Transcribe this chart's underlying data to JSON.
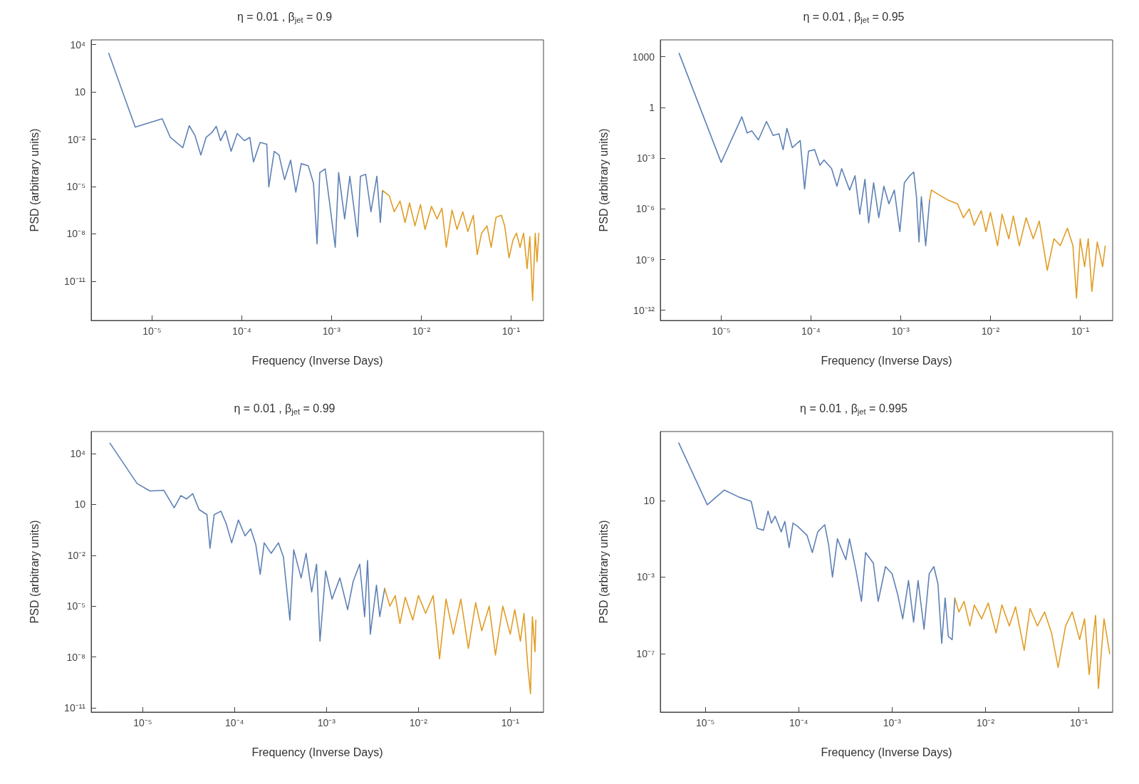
{
  "chart_data": [
    {
      "type": "line",
      "title": "η = 0.01 , β$_{jet}$ = 0.9",
      "xlabel": "Frequency (Inverse Days)",
      "ylabel": "PSD (arbitrary units)",
      "log": "xy",
      "marker": "none",
      "xlim": [
        2.1e-06,
        0.23
      ],
      "ylim": [
        3.2e-14,
        20000.0
      ],
      "xticks": [
        {
          "value": 1e-05,
          "label": "10⁻⁵"
        },
        {
          "value": 0.0001,
          "label": "10⁻⁴"
        },
        {
          "value": 0.001,
          "label": "10⁻³"
        },
        {
          "value": 0.01,
          "label": "10⁻²"
        },
        {
          "value": 0.1,
          "label": "10⁻¹"
        }
      ],
      "yticks": [
        {
          "value": 10000.0,
          "label": "10⁴"
        },
        10,
        {
          "value": 0.01,
          "label": "10⁻²"
        },
        {
          "value": 1e-05,
          "label": "10⁻⁵"
        },
        {
          "value": 1e-08,
          "label": "10⁻⁸"
        },
        {
          "value": 1e-11,
          "label": "10⁻¹¹"
        }
      ],
      "series": [
        {
          "color": "#5e81b5",
          "x": [
            3.3e-06,
            6.5e-06,
            1.3e-05,
            1.6e-05,
            2.2e-05,
            2.6e-05,
            3e-05,
            3.5e-05,
            4e-05,
            4.6e-05,
            5.2e-05,
            5.8e-05,
            6.6e-05,
            7.6e-05,
            8.9e-05,
            0.000107,
            0.000123,
            0.000135,
            0.00016,
            0.00019,
            0.0002,
            0.00023,
            0.00026,
            0.0003,
            0.00035,
            0.0004,
            0.00046,
            0.00055,
            0.00063,
            0.00069,
            0.00074,
            0.00085,
            0.00098,
            0.0011,
            0.0012,
            0.0014,
            0.0016,
            0.0018,
            0.00195,
            0.0021,
            0.0024,
            0.00275,
            0.0032,
            0.0035,
            0.0037
          ],
          "values": [
            2800,
            0.059,
            0.2,
            0.013,
            0.0029,
            0.072,
            0.018,
            0.001,
            0.013,
            0.025,
            0.065,
            0.0081,
            0.035,
            0.0017,
            0.023,
            0.0081,
            0.013,
            0.00036,
            0.0063,
            0.0048,
            9.5e-06,
            0.0017,
            0.001,
            2.7e-05,
            0.00047,
            4.4e-06,
            0.00028,
            0.00021,
            1.6e-05,
            2.3e-09,
            7.6e-05,
            0.00013,
            2.5e-07,
            1.4e-09,
            7.6e-05,
            8.9e-08,
            4.5e-05,
            2.5e-07,
            6.6e-09,
            4.5e-05,
            5.9e-05,
            2.5e-07,
            4.5e-05,
            5.2e-08,
            5.6e-06
          ]
        },
        {
          "color": "#e19c24",
          "x": [
            0.0037,
            0.0044,
            0.005,
            0.0058,
            0.0066,
            0.0074,
            0.0085,
            0.0098,
            0.011,
            0.013,
            0.015,
            0.017,
            0.019,
            0.022,
            0.025,
            0.029,
            0.033,
            0.038,
            0.042,
            0.047,
            0.054,
            0.06,
            0.068,
            0.078,
            0.085,
            0.095,
            0.105,
            0.115,
            0.126,
            0.138,
            0.151,
            0.162,
            0.174,
            0.186,
            0.195,
            0.204
          ],
          "values": [
            5.6e-06,
            2.6e-06,
            2.5e-07,
            1.2e-06,
            5.2e-08,
            9.1e-07,
            3.2e-08,
            7.1e-07,
            1.9e-08,
            5.5e-07,
            8.9e-08,
            4.2e-07,
            1.4e-09,
            3.2e-07,
            1.9e-08,
            2.5e-07,
            1.4e-08,
            1.5e-07,
            4.9e-10,
            1.1e-08,
            3.2e-08,
            1.4e-09,
            1.1e-07,
            1.5e-07,
            3.2e-08,
            3e-10,
            3.9e-09,
            1.1e-08,
            1.4e-09,
            1.1e-08,
            6.2e-11,
            6.6e-09,
            5.8e-13,
            1.1e-08,
            1.7e-10,
            1.1e-08
          ]
        }
      ]
    },
    {
      "type": "line",
      "title": "η = 0.01 , β$_{jet}$ = 0.95",
      "xlabel": "Frequency (Inverse Days)",
      "ylabel": "PSD (arbitrary units)",
      "log": "xy",
      "marker": "none",
      "xlim": [
        2.1e-06,
        0.23
      ],
      "ylim": [
        2.5e-13,
        10000.0
      ],
      "xticks": [
        {
          "value": 1e-05,
          "label": "10⁻⁵"
        },
        {
          "value": 0.0001,
          "label": "10⁻⁴"
        },
        {
          "value": 0.001,
          "label": "10⁻³"
        },
        {
          "value": 0.01,
          "label": "10⁻²"
        },
        {
          "value": 0.1,
          "label": "10⁻¹"
        }
      ],
      "yticks": [
        1000,
        1,
        {
          "value": 0.001,
          "label": "10⁻³"
        },
        {
          "value": 1e-06,
          "label": "10⁻⁶"
        },
        {
          "value": 1e-09,
          "label": "10⁻⁹"
        },
        {
          "value": 1e-12,
          "label": "10⁻¹²"
        }
      ],
      "series": [
        {
          "color": "#5e81b5",
          "x": [
            3.4e-06,
            1e-05,
            1.7e-05,
            1.95e-05,
            2.2e-05,
            2.6e-05,
            3.2e-05,
            3.8e-05,
            4.4e-05,
            4.9e-05,
            5.4e-05,
            6.2e-05,
            7.6e-05,
            8.5e-05,
            9.4e-05,
            0.00011,
            0.000126,
            0.00014,
            0.00017,
            0.000195,
            0.00022,
            0.00027,
            0.00031,
            0.00035,
            0.0004,
            0.00044,
            0.0005,
            0.00057,
            0.00065,
            0.00074,
            0.00085,
            0.00098,
            0.0011,
            0.00126,
            0.0014,
            0.0015,
            0.0016,
            0.0017,
            0.0019,
            0.0021
          ],
          "values": [
            1600,
            0.00056,
            0.28,
            0.031,
            0.041,
            0.012,
            0.15,
            0.022,
            0.028,
            0.0032,
            0.058,
            0.0042,
            0.011,
            1.5e-05,
            0.0026,
            0.0032,
            0.00038,
            0.00078,
            0.00024,
            2.2e-05,
            0.00024,
            1.3e-05,
            9.1e-05,
            4.8e-07,
            5.6e-05,
            1.5e-07,
            3.5e-05,
            3e-07,
            2.2e-05,
            2e-06,
            1.3e-05,
            4.5e-08,
            3.5e-05,
            9.1e-05,
            0.00015,
            5.2e-06,
            1.1e-08,
            5.2e-06,
            6.6e-09,
            3.2e-06
          ]
        },
        {
          "color": "#e19c24",
          "x": [
            0.0021,
            0.0022,
            0.0027,
            0.0034,
            0.0043,
            0.005,
            0.0058,
            0.0066,
            0.0079,
            0.0089,
            0.01,
            0.012,
            0.0135,
            0.016,
            0.018,
            0.021,
            0.025,
            0.03,
            0.035,
            0.043,
            0.051,
            0.06,
            0.072,
            0.083,
            0.091,
            0.1,
            0.112,
            0.123,
            0.135,
            0.155,
            0.178,
            0.19
          ],
          "values": [
            3.2e-06,
            1.3e-05,
            6.6e-06,
            3.2e-06,
            2e-06,
            3e-07,
            1e-06,
            1.1e-07,
            7.8e-07,
            4.5e-08,
            6.2e-07,
            6.6e-09,
            4.8e-07,
            1.7e-08,
            3.8e-07,
            6.6e-09,
            3e-07,
            1.7e-08,
            1.9e-07,
            2.3e-10,
            1.7e-08,
            6.6e-09,
            7.2e-08,
            6.6e-09,
            5.2e-12,
            1.7e-08,
            3.8e-10,
            1.7e-08,
            1.3e-11,
            1.1e-08,
            3.8e-10,
            6.3e-09
          ]
        }
      ]
    },
    {
      "type": "line",
      "title": "η = 0.01 , β$_{jet}$ = 0.99",
      "xlabel": "Frequency (Inverse Days)",
      "ylabel": "PSD (arbitrary units)",
      "log": "xy",
      "marker": "none",
      "xlim": [
        2.75e-06,
        0.23
      ],
      "ylim": [
        5.6e-12,
        200000.0
      ],
      "xticks": [
        {
          "value": 1e-05,
          "label": "10⁻⁵"
        },
        {
          "value": 0.0001,
          "label": "10⁻⁴"
        },
        {
          "value": 0.001,
          "label": "10⁻³"
        },
        {
          "value": 0.01,
          "label": "10⁻²"
        },
        {
          "value": 0.1,
          "label": "10⁻¹"
        }
      ],
      "yticks": [
        {
          "value": 10000.0,
          "label": "10⁴"
        },
        10,
        {
          "value": 0.01,
          "label": "10⁻²"
        },
        {
          "value": 1e-05,
          "label": "10⁻⁵"
        },
        {
          "value": 1e-08,
          "label": "10⁻⁸"
        },
        {
          "value": 1e-11,
          "label": "10⁻¹¹"
        }
      ],
      "series": [
        {
          "color": "#5e81b5",
          "x": [
            4.4e-06,
            8.7e-06,
            1.2e-05,
            1.7e-05,
            2.2e-05,
            2.6e-05,
            3e-05,
            3.5e-05,
            4.1e-05,
            5e-05,
            5.4e-05,
            6e-05,
            7.1e-05,
            8.1e-05,
            9.3e-05,
            0.00011,
            0.00013,
            0.00015,
            0.00017,
            0.00019,
            0.00021,
            0.00025,
            0.0003,
            0.00034,
            0.0004,
            0.00044,
            0.00053,
            0.0006,
            0.00069,
            0.00078,
            0.00085,
            0.00098,
            0.00115,
            0.0014,
            0.0017,
            0.00195,
            0.0023,
            0.0026,
            0.0028,
            0.003,
            0.0035,
            0.0038,
            0.0043
          ],
          "values": [
            41000.0,
            170,
            62,
            68,
            6.3,
            33,
            21,
            43,
            5.0,
            2.5,
            0.026,
            2.5,
            4.0,
            0.74,
            0.054,
            1.2,
            0.14,
            0.36,
            0.043,
            0.00074,
            0.054,
            0.013,
            0.054,
            0.0079,
            1.5e-06,
            0.021,
            0.00046,
            0.013,
            6.8e-05,
            0.003,
            8.5e-08,
            0.0012,
            2.6e-05,
            0.00046,
            6.2e-06,
            0.00028,
            0.003,
            2.4e-06,
            0.0049,
            2.2e-07,
            0.00017,
            2.4e-06,
            0.00011
          ]
        },
        {
          "color": "#e19c24",
          "x": [
            0.0043,
            0.0049,
            0.0056,
            0.0063,
            0.0072,
            0.0087,
            0.01,
            0.012,
            0.0145,
            0.017,
            0.02,
            0.024,
            0.029,
            0.035,
            0.042,
            0.049,
            0.059,
            0.069,
            0.083,
            0.1,
            0.112,
            0.129,
            0.141,
            0.155,
            0.166,
            0.174,
            0.186,
            0.19
          ],
          "values": [
            0.00011,
            1e-05,
            4.2e-05,
            9.3e-07,
            3.3e-05,
            1.5e-06,
            4.2e-05,
            3.8e-06,
            4.2e-05,
            7.8e-09,
            2.6e-05,
            2.2e-07,
            2.6e-05,
            3.2e-08,
            1.6e-05,
            3.5e-07,
            1e-05,
            1.3e-08,
            1e-05,
            2.2e-07,
            6.2e-06,
            8.5e-08,
            3.8e-06,
            3e-09,
            6.8e-11,
            2.4e-06,
            2e-08,
            1.5e-06
          ]
        }
      ]
    },
    {
      "type": "line",
      "title": "η = 0.01 , β$_{jet}$ = 0.995",
      "xlabel": "Frequency (Inverse Days)",
      "ylabel": "PSD (arbitrary units)",
      "log": "xy",
      "marker": "none",
      "xlim": [
        3.3e-06,
        0.23
      ],
      "ylim": [
        8.9e-11,
        40000.0
      ],
      "xticks": [
        {
          "value": 1e-05,
          "label": "10⁻⁵"
        },
        {
          "value": 0.0001,
          "label": "10⁻⁴"
        },
        {
          "value": 0.001,
          "label": "10⁻³"
        },
        {
          "value": 0.01,
          "label": "10⁻²"
        },
        {
          "value": 0.1,
          "label": "10⁻¹"
        }
      ],
      "yticks": [
        10,
        {
          "value": 0.001,
          "label": "10⁻³"
        },
        {
          "value": 1e-07,
          "label": "10⁻⁷"
        }
      ],
      "series": [
        {
          "color": "#5e81b5",
          "x": [
            5.2e-06,
            1.05e-05,
            1.6e-05,
            2.3e-05,
            3.1e-05,
            3.6e-05,
            4.2e-05,
            4.7e-05,
            5.1e-05,
            5.6e-05,
            6.5e-05,
            7.1e-05,
            7.9e-05,
            8.7e-05,
            9.8e-05,
            0.000123,
            0.00014,
            0.00016,
            0.00019,
            0.00021,
            0.00023,
            0.00026,
            0.00032,
            0.00035,
            0.00041,
            0.00047,
            0.00052,
            0.00063,
            0.00071,
            0.00085,
            0.001,
            0.00115,
            0.0013,
            0.0015,
            0.0017,
            0.0019,
            0.0022,
            0.0025,
            0.0028,
            0.0031,
            0.0034,
            0.0037,
            0.004,
            0.0044,
            0.0047
          ],
          "values": [
            10000.0,
            6.0,
            35,
            15,
            9.1,
            0.35,
            0.28,
            2.8,
            0.66,
            1.5,
            0.23,
            0.81,
            0.035,
            0.66,
            0.44,
            0.15,
            0.019,
            0.23,
            0.54,
            0.044,
            0.001,
            0.1,
            0.0081,
            0.1,
            0.0023,
            5.4e-05,
            0.019,
            0.0054,
            5.4e-05,
            0.0035,
            0.0015,
            0.00012,
            6.6e-06,
            0.00066,
            4.4e-06,
            0.00066,
            1.9e-06,
            0.0015,
            0.0035,
            0.00044,
            3.5e-07,
            8.1e-05,
            8.1e-07,
            5.4e-07,
            8.1e-05
          ]
        },
        {
          "color": "#e19c24",
          "x": [
            0.0047,
            0.0052,
            0.0059,
            0.0068,
            0.0076,
            0.0091,
            0.0107,
            0.013,
            0.015,
            0.018,
            0.021,
            0.026,
            0.03,
            0.036,
            0.043,
            0.051,
            0.06,
            0.072,
            0.085,
            0.102,
            0.115,
            0.129,
            0.151,
            0.162,
            0.186,
            0.214
          ],
          "values": [
            8.1e-05,
            1.5e-05,
            5.4e-05,
            2.8e-06,
            3.5e-05,
            6.6e-06,
            4.4e-05,
            1.2e-06,
            3.5e-05,
            2.8e-06,
            2.8e-05,
            1.5e-07,
            2.3e-05,
            2.8e-06,
            1.5e-05,
            1.2e-06,
            1.9e-08,
            2.8e-06,
            1.5e-05,
            5.4e-07,
            6.6e-06,
            8.1e-09,
            1e-05,
            1.5e-09,
            6.6e-06,
            1e-07
          ]
        }
      ]
    }
  ]
}
